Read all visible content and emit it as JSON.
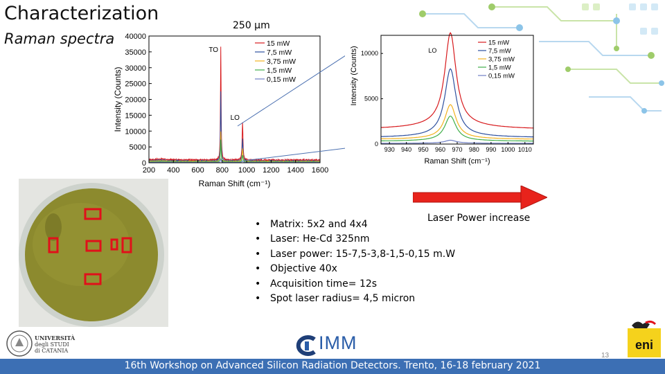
{
  "title": "Characterization",
  "subtitle": "Raman spectra",
  "scale_label": "250 µm",
  "arrow_label": "Laser Power increase",
  "parameters": [
    "Matrix: 5x2 and 4x4",
    "Laser: He-Cd 325nm",
    "Laser power: 15-7,5-3,8-1,5-0,15 m.W",
    "Objective 40x",
    "Acquisition time= 12s",
    "Spot laser radius= 4,5 micron"
  ],
  "bullet": "•",
  "footer": "16th Workshop on Advanced Silicon Radiation Detectors. Trento, 16-18 february 2021",
  "page_number": "13",
  "logos": {
    "unict_line1": "UNIVERSITÀ",
    "unict_line2": "degli STUDI",
    "unict_line3": "di CATANIA",
    "imm": "IMM",
    "eni": "eni"
  },
  "colors": {
    "footer_bar": "#3c6fb4",
    "arrow": "#e8231c",
    "wafer": "#8c8a2e",
    "markers": "#e0101a"
  },
  "chart_data": [
    {
      "type": "line",
      "xlabel": "Raman Shift (cm⁻¹)",
      "ylabel": "Intensity (Counts)",
      "xlim": [
        200,
        1600
      ],
      "ylim": [
        0,
        40000
      ],
      "xticks": [
        200,
        400,
        600,
        800,
        1000,
        1200,
        1400,
        1600
      ],
      "yticks": [
        0,
        5000,
        10000,
        15000,
        20000,
        25000,
        30000,
        35000,
        40000
      ],
      "annotations": [
        {
          "text": "TO",
          "x": 790,
          "y": 35000
        },
        {
          "text": "LO",
          "x": 965,
          "y": 13500
        }
      ],
      "legend_position": "top-right",
      "series": [
        {
          "name": "15 mW",
          "color": "#d7191c",
          "to_peak": 36000,
          "lo_peak": 12000,
          "baseline": 600
        },
        {
          "name": "7,5 mW",
          "color": "#2c4f9e",
          "to_peak": 22000,
          "lo_peak": 7000,
          "baseline": 400
        },
        {
          "name": "3,75 mW",
          "color": "#f2b21f",
          "to_peak": 9500,
          "lo_peak": 4000,
          "baseline": 300
        },
        {
          "name": "1,5 mW",
          "color": "#3fae49",
          "to_peak": 7000,
          "lo_peak": 2200,
          "baseline": 200
        },
        {
          "name": "0,15 mW",
          "color": "#6f7fc4",
          "to_peak": 1200,
          "lo_peak": 500,
          "baseline": 100
        }
      ]
    },
    {
      "type": "line",
      "xlabel": "Raman Shift (cm⁻¹)",
      "ylabel": "Intensity (Counts)",
      "xlim": [
        925,
        1015
      ],
      "ylim": [
        0,
        12000
      ],
      "xticks": [
        930,
        940,
        950,
        960,
        970,
        980,
        990,
        1000,
        1010
      ],
      "yticks": [
        0,
        5000,
        10000
      ],
      "annotations": [
        {
          "text": "LO",
          "x": 962,
          "y": 11000
        }
      ],
      "legend_position": "top-right",
      "peak_center": 966,
      "series": [
        {
          "name": "15 mW",
          "color": "#d7191c",
          "peak": 11800,
          "baseline": 1600
        },
        {
          "name": "7,5 mW",
          "color": "#2c4f9e",
          "peak": 8100,
          "baseline": 700
        },
        {
          "name": "3,75 mW",
          "color": "#f2b21f",
          "peak": 4200,
          "baseline": 500
        },
        {
          "name": "1,5 mW",
          "color": "#3fae49",
          "peak": 3000,
          "baseline": 300
        },
        {
          "name": "0,15 mW",
          "color": "#6f7fc4",
          "peak": 400,
          "baseline": 80
        }
      ]
    }
  ]
}
